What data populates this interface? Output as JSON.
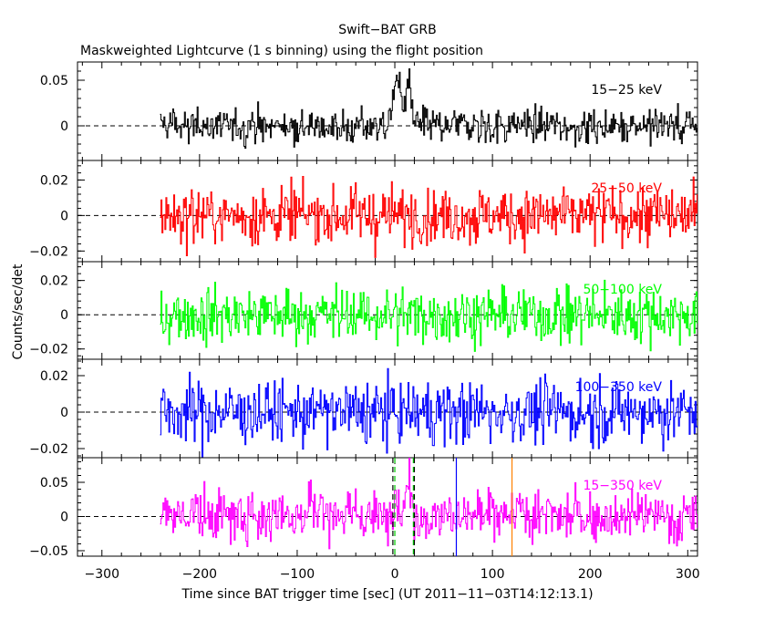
{
  "chart_data": {
    "type": "line",
    "title": "Swift−BAT GRB",
    "subtitle": "Maskweighted Lightcurve (1 s binning) using the flight position",
    "xlabel": "Time since BAT trigger time [sec] (UT 2011−11−03T14:12:13.1)",
    "ylabel": "Counts/sec/det",
    "xlim": [
      -325,
      310
    ],
    "x_ticks": [
      -300,
      -200,
      -100,
      0,
      100,
      200,
      300
    ],
    "x_tick_labels": [
      "−300",
      "−200",
      "−100",
      "0",
      "100",
      "200",
      "300"
    ],
    "data_range": [
      -240,
      310
    ],
    "grid": false,
    "panels": [
      {
        "band": "15−25 keV",
        "color": "#000000",
        "ylim": [
          -0.038,
          0.07
        ],
        "y_ticks": [
          0,
          0.05
        ],
        "y_tick_labels": [
          "0",
          "0.05"
        ],
        "noise": 0.0095,
        "features": [
          {
            "t": 0,
            "amp": 0.045,
            "width": 3
          },
          {
            "t": 5,
            "amp": 0.038,
            "width": 3
          },
          {
            "t": 14,
            "amp": 0.05,
            "width": 3
          }
        ]
      },
      {
        "band": "25−50 keV",
        "color": "#ff0000",
        "ylim": [
          -0.026,
          0.031
        ],
        "y_ticks": [
          -0.02,
          0,
          0.02
        ],
        "y_tick_labels": [
          "−0.02",
          "0",
          "0.02"
        ],
        "noise": 0.008,
        "features": []
      },
      {
        "band": "50−100 keV",
        "color": "#00ff00",
        "ylim": [
          -0.026,
          0.031
        ],
        "y_ticks": [
          -0.02,
          0,
          0.02
        ],
        "y_tick_labels": [
          "−0.02",
          "0",
          "0.02"
        ],
        "noise": 0.008,
        "features": []
      },
      {
        "band": "100−350 keV",
        "color": "#0000ff",
        "ylim": [
          -0.025,
          0.029
        ],
        "y_ticks": [
          -0.02,
          0,
          0.02
        ],
        "y_tick_labels": [
          "−0.02",
          "0",
          "0.02"
        ],
        "noise": 0.0085,
        "features": []
      },
      {
        "band": "15−350 keV",
        "color": "#ff00ff",
        "ylim": [
          -0.058,
          0.086
        ],
        "y_ticks": [
          -0.05,
          0,
          0.05
        ],
        "y_tick_labels": [
          "−0.05",
          "0",
          "0.05"
        ],
        "noise": 0.018,
        "features": [
          {
            "t": -85,
            "amp": 0.045,
            "width": 3
          },
          {
            "t": 0,
            "amp": 0.055,
            "width": 3
          },
          {
            "t": 14,
            "amp": 0.06,
            "width": 3
          }
        ]
      }
    ],
    "markers": [
      {
        "t": 0,
        "color": "#00cc00",
        "style": "dashed"
      },
      {
        "t": 19,
        "color": "#00cc00",
        "style": "dashed"
      },
      {
        "t": -2,
        "color": "#000000",
        "style": "dashed"
      },
      {
        "t": 20,
        "color": "#000000",
        "style": "dashed"
      },
      {
        "t": 63,
        "color": "#0000ff",
        "style": "solid"
      },
      {
        "t": 120,
        "color": "#ff8000",
        "style": "solid"
      }
    ]
  }
}
